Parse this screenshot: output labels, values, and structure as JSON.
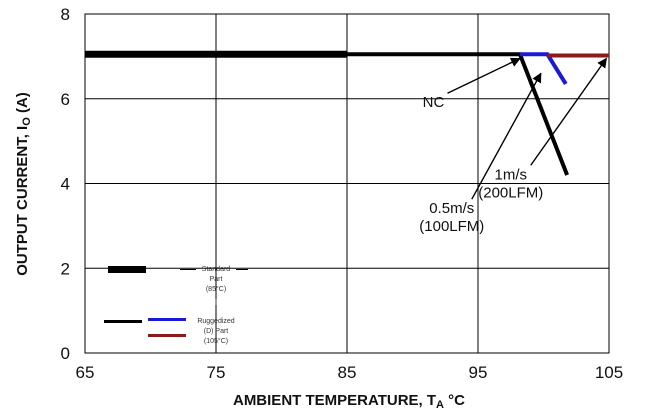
{
  "chart_data": {
    "type": "line",
    "xlabel": "AMBIENT TEMPERATURE, T",
    "xlabel_sub": "A",
    "xlabel_unit": " °C",
    "ylabel": "OUTPUT CURRENT, I",
    "ylabel_sub": "O",
    "ylabel_unit": " (A)",
    "xlim": [
      65,
      105
    ],
    "ylim": [
      0,
      8
    ],
    "xticks": [
      "65",
      "75",
      "85",
      "95",
      "105"
    ],
    "yticks": [
      "0",
      "2",
      "4",
      "6",
      "8"
    ],
    "grid": true,
    "colors": {
      "standard": "#000000",
      "ruggedized_blue": "#1a1ad6",
      "ruggedized_red": "#8b1a1a",
      "grid": "#000000"
    },
    "series": [
      {
        "name": "Standard Part (85°C)",
        "color": "#000000",
        "points": [
          [
            65,
            7.05
          ],
          [
            85,
            7.05
          ]
        ]
      },
      {
        "color": "#000000",
        "points": [
          [
            85,
            7.05
          ],
          [
            98.2,
            7.05
          ],
          [
            101.8,
            4.2
          ]
        ]
      },
      {
        "color": "#1a1ad6",
        "points": [
          [
            98.2,
            7.05
          ],
          [
            100.3,
            7.05
          ],
          [
            101.7,
            6.35
          ]
        ]
      },
      {
        "color": "#8b1a1a",
        "points": [
          [
            100.3,
            7.02
          ],
          [
            105,
            7.02
          ]
        ]
      }
    ],
    "annotations": [
      {
        "lines": [
          "NC"
        ],
        "anchor": [
          91.6,
          5.8
        ],
        "arrow_to": [
          98.2,
          6.95
        ]
      },
      {
        "lines": [
          "1m/s",
          "(200LFM)"
        ],
        "anchor": [
          97.5,
          4.1
        ],
        "arrow_to": [
          104.8,
          6.95
        ]
      },
      {
        "lines": [
          "0.5m/s",
          "(100LFM)"
        ],
        "anchor": [
          93,
          3.3
        ],
        "arrow_to": [
          99.8,
          6.6
        ]
      }
    ],
    "legend": {
      "placement": "bottom-left",
      "standard_lines": [
        "Standard",
        "Part",
        "(85°C)"
      ],
      "ruggedized_lines": [
        "Ruggedized",
        "(D) Part",
        "(105°C)"
      ]
    }
  }
}
